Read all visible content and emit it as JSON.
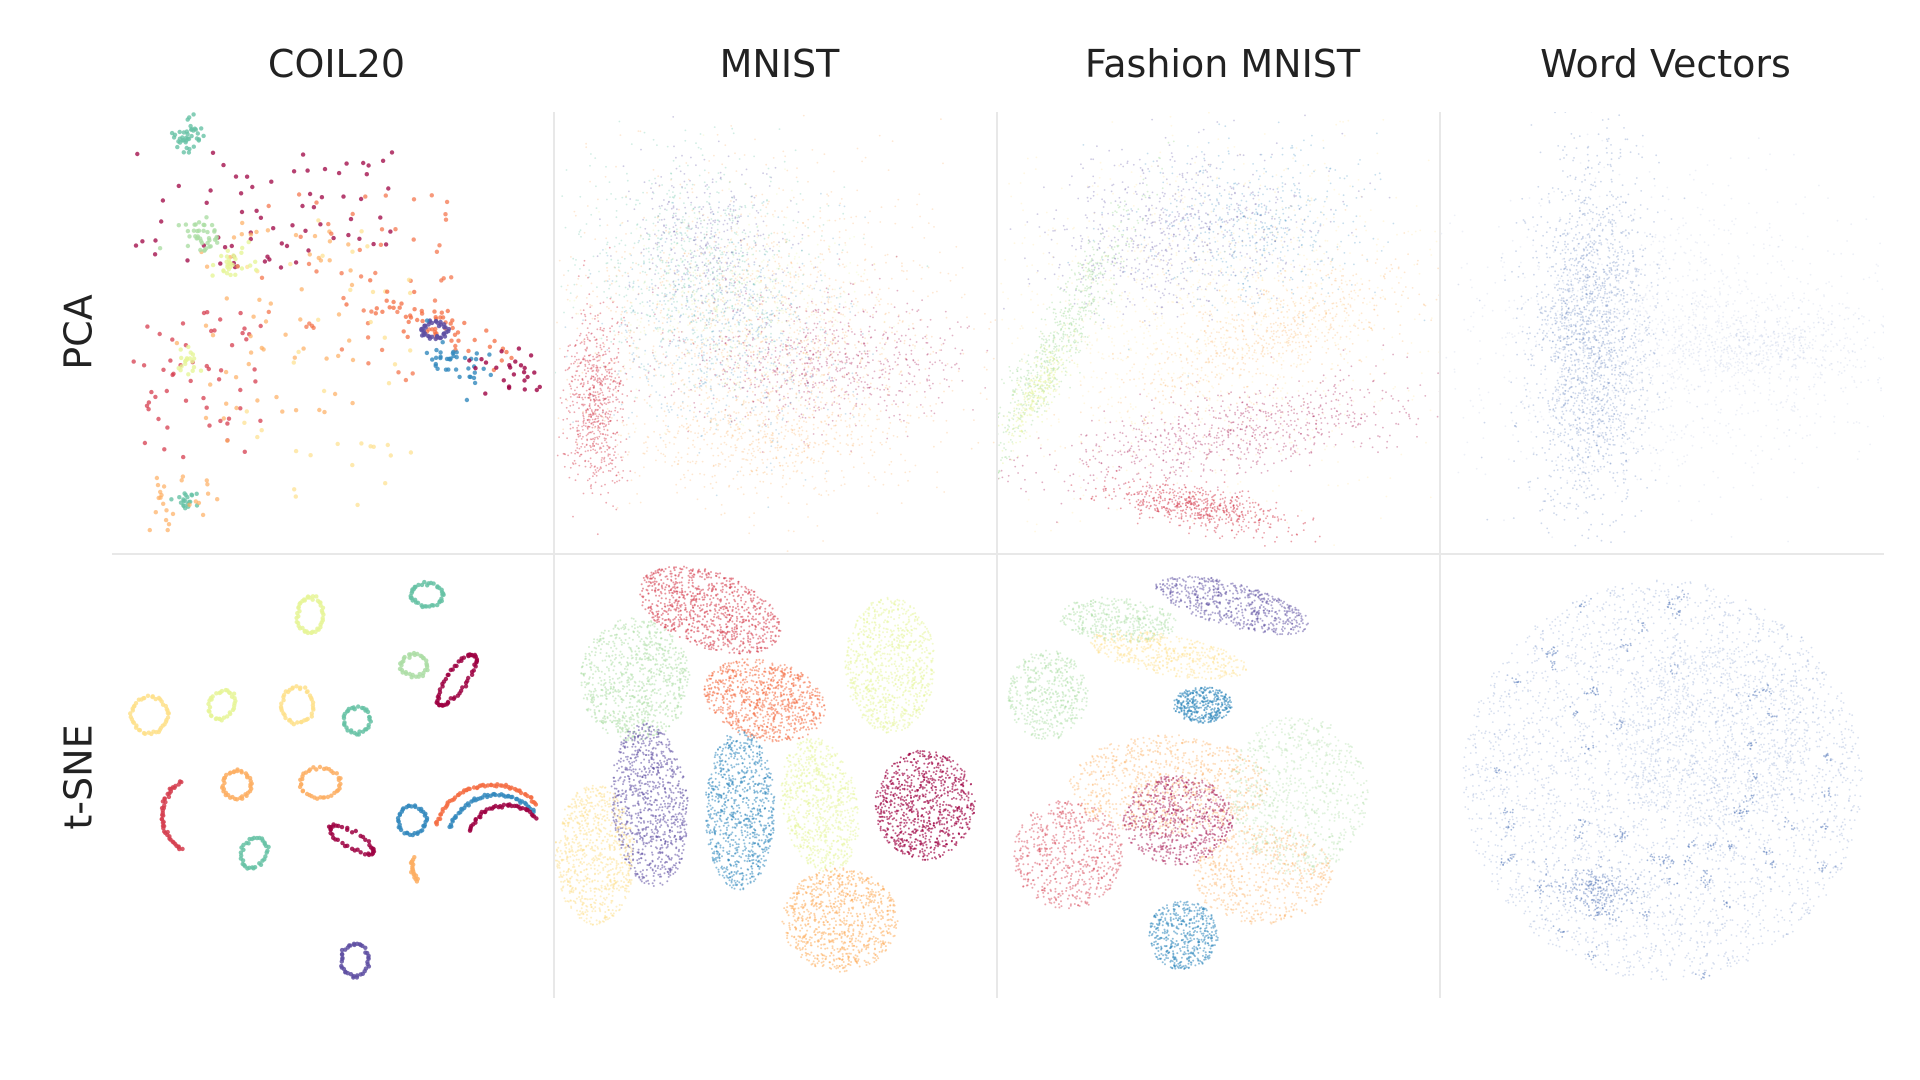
{
  "chart_data": {
    "type": "scatter",
    "columns": [
      "COIL20",
      "MNIST",
      "Fashion MNIST",
      "Word Vectors"
    ],
    "rows": [
      "PCA",
      "t-SNE"
    ],
    "grid": true,
    "legend": "none",
    "panels": [
      {
        "row": "PCA",
        "column": "COIL20"
      },
      {
        "row": "PCA",
        "column": "MNIST"
      },
      {
        "row": "PCA",
        "column": "Fashion MNIST"
      },
      {
        "row": "PCA",
        "column": "Word Vectors"
      },
      {
        "row": "t-SNE",
        "column": "COIL20"
      },
      {
        "row": "t-SNE",
        "column": "MNIST"
      },
      {
        "row": "t-SNE",
        "column": "Fashion MNIST"
      },
      {
        "row": "t-SNE",
        "column": "Word Vectors"
      }
    ],
    "palette": [
      "#d53e4f",
      "#f46d43",
      "#fdae61",
      "#fee08b",
      "#e6f598",
      "#abdda4",
      "#66c2a5",
      "#3288bd",
      "#5e4fa2",
      "#9e0142"
    ],
    "word_vector_color": "#4a6fb5"
  }
}
